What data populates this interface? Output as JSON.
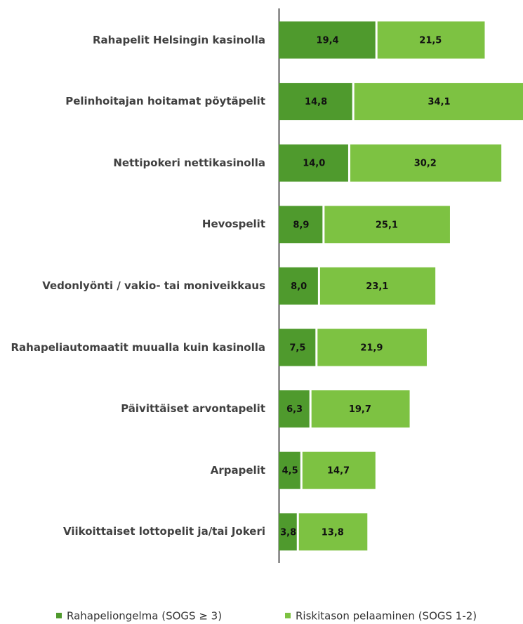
{
  "chart_data": {
    "type": "stacked_barh",
    "categories": [
      "Rahapelit Helsingin kasinolla",
      "Pelinhoitajan hoitamat pöytäpelit",
      "Nettipokeri nettikasinolla",
      "Hevospelit",
      "Vedonlyönti / vakio- tai moniveikkaus",
      "Rahapeliautomaatit muualla kuin kasinolla",
      "Päivittäiset arvontapelit",
      "Arpapelit",
      "Viikoittaiset lottopelit ja/tai Jokeri"
    ],
    "series": [
      {
        "name": "Rahapeliongelma (SOGS ≥ 3)",
        "color": "#4f9a2d",
        "values": [
          19.4,
          14.8,
          14.0,
          8.9,
          8.0,
          7.5,
          6.3,
          4.5,
          3.8
        ],
        "value_labels": [
          "19,4",
          "14,8",
          "14,0",
          "8,9",
          "8,0",
          "7,5",
          "6,3",
          "4,5",
          "3,8"
        ]
      },
      {
        "name": "Riskitason pelaaminen (SOGS 1-2)",
        "color": "#7dc242",
        "values": [
          21.5,
          34.1,
          30.2,
          25.1,
          23.1,
          21.9,
          19.7,
          14.7,
          13.8
        ],
        "value_labels": [
          "21,5",
          "34,1",
          "30,2",
          "25,1",
          "23,1",
          "21,9",
          "19,7",
          "14,7",
          "13,8"
        ]
      }
    ],
    "xlim": [
      0,
      48.5
    ],
    "legend": "bottom"
  }
}
